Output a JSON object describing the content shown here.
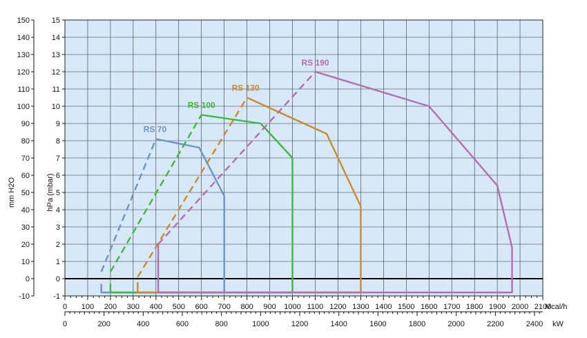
{
  "chart_data": {
    "type": "line",
    "title": "",
    "plot": {
      "xlim": [
        0,
        2100
      ],
      "ylim": [
        -1,
        15
      ]
    },
    "left_axes": [
      {
        "label": "mm H2O",
        "ticks": [
          -10,
          0,
          10,
          20,
          30,
          40,
          50,
          60,
          70,
          80,
          90,
          100,
          110,
          120,
          130,
          140,
          150
        ]
      },
      {
        "label": "hPa (mbar)",
        "ticks": [
          -1,
          0,
          1,
          2,
          3,
          4,
          5,
          6,
          7,
          8,
          9,
          10,
          11,
          12,
          13,
          14,
          15
        ]
      }
    ],
    "bottom_axes": [
      {
        "label": "Mcal/h",
        "ticks": [
          0,
          100,
          200,
          300,
          400,
          500,
          600,
          700,
          800,
          900,
          1000,
          1100,
          1200,
          1300,
          1400,
          1500,
          1600,
          1700,
          1800,
          1900,
          2000,
          2100
        ]
      },
      {
        "label": "kW",
        "ticks": [
          0,
          200,
          400,
          600,
          800,
          1000,
          1200,
          1400,
          1600,
          1800,
          2000,
          2200,
          2400
        ]
      }
    ],
    "series": [
      {
        "name": "RS 70",
        "color": "#6b93c9",
        "solid": [
          [
            400,
            8.1
          ],
          [
            590,
            7.6
          ],
          [
            700,
            4.8
          ],
          [
            700,
            -0.8
          ],
          [
            160,
            -0.8
          ],
          [
            160,
            -0.3
          ]
        ],
        "dashed": [
          [
            160,
            0.4
          ],
          [
            400,
            8.1
          ]
        ]
      },
      {
        "name": "RS 100",
        "color": "#3cb83c",
        "solid": [
          [
            600,
            9.5
          ],
          [
            860,
            9.0
          ],
          [
            1000,
            7.0
          ],
          [
            1000,
            -0.8
          ],
          [
            200,
            -0.8
          ],
          [
            200,
            -0.3
          ]
        ],
        "dashed": [
          [
            200,
            0.4
          ],
          [
            600,
            9.5
          ]
        ]
      },
      {
        "name": "RS 130",
        "color": "#c88a2e",
        "solid": [
          [
            800,
            10.5
          ],
          [
            1150,
            8.4
          ],
          [
            1300,
            4.2
          ],
          [
            1300,
            -0.8
          ],
          [
            320,
            -0.8
          ],
          [
            320,
            -0.2
          ]
        ],
        "dashed": [
          [
            320,
            0.1
          ],
          [
            800,
            10.5
          ]
        ]
      },
      {
        "name": "RS 190",
        "color": "#b56cb2",
        "solid": [
          [
            1100,
            12.0
          ],
          [
            1600,
            10.0
          ],
          [
            1900,
            5.4
          ],
          [
            1965,
            1.8
          ],
          [
            1965,
            -0.8
          ],
          [
            410,
            -0.8
          ],
          [
            410,
            2.0
          ]
        ],
        "dashed": [
          [
            410,
            2.0
          ],
          [
            1100,
            12.0
          ]
        ]
      }
    ]
  }
}
